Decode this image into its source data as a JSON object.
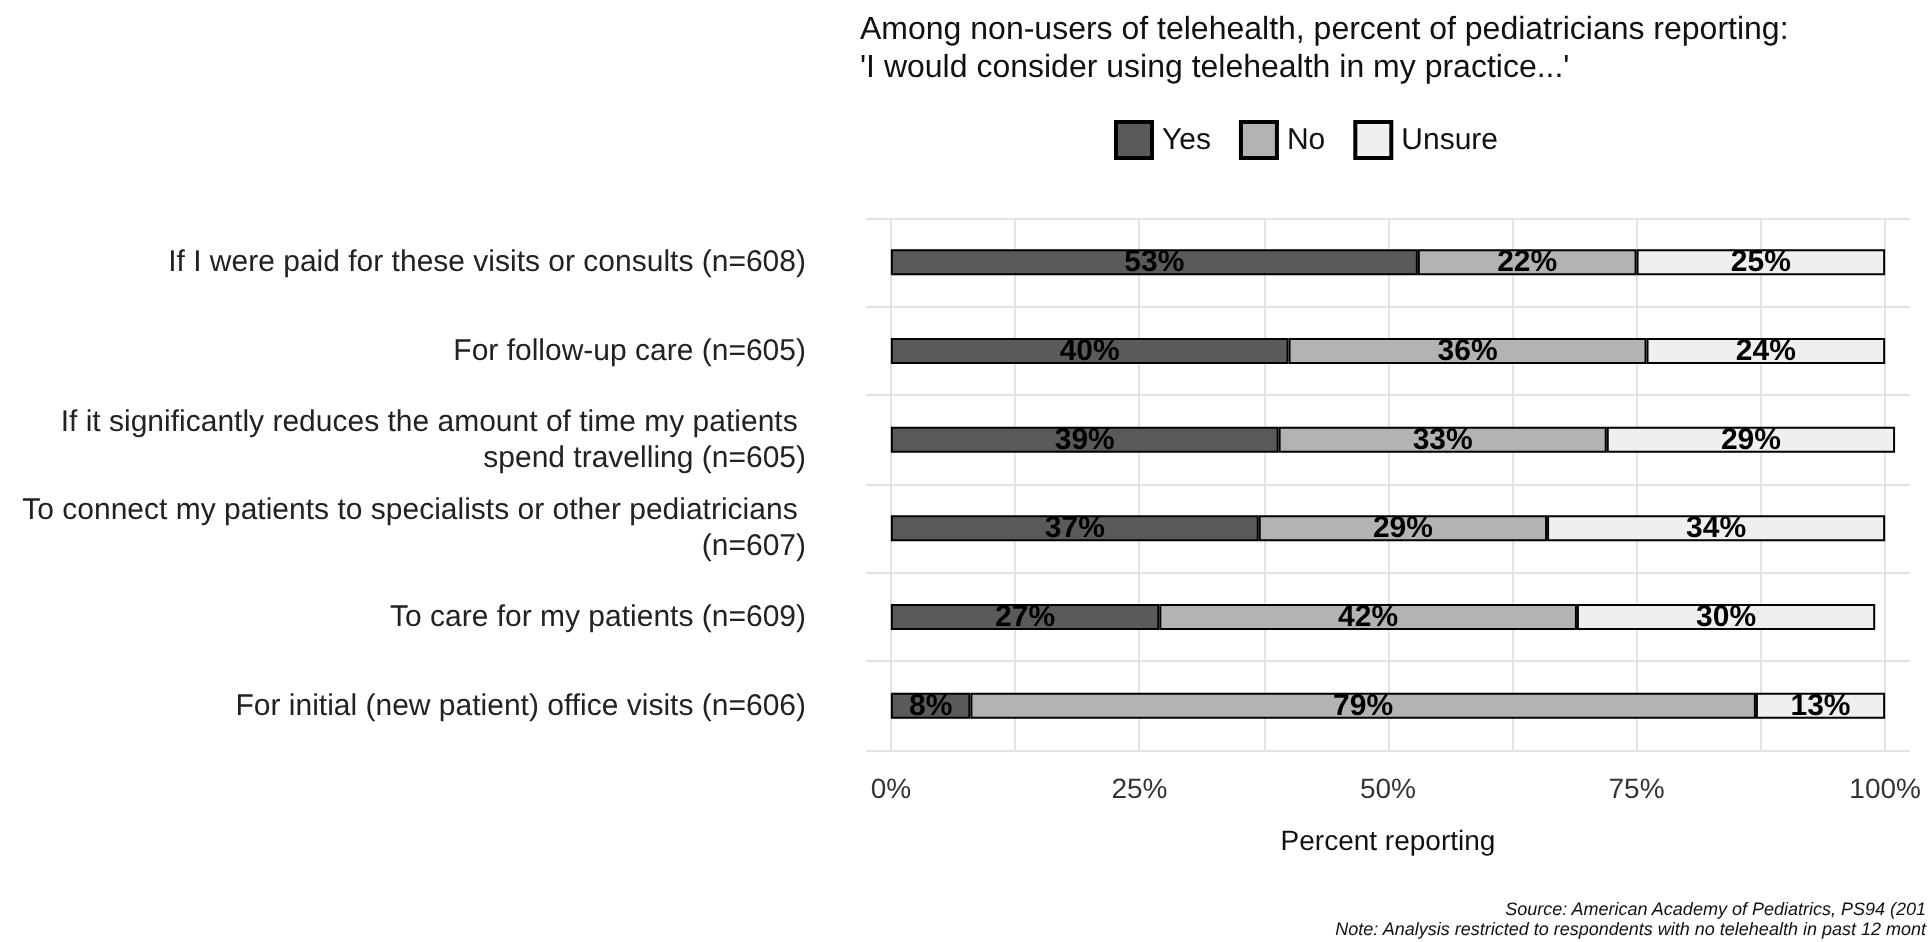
{
  "chart_data": {
    "type": "bar",
    "orientation": "horizontal",
    "stacked": true,
    "title": "Among non-users of telehealth, percent of pediatricians reporting:",
    "subtitle": "'I would consider using telehealth in my practice...'",
    "xlabel": "Percent reporting",
    "categories": [
      "If I were paid for these visits or consults (n=608)",
      "For follow-up care (n=605)",
      "If it significantly reduces the amount of time my patients spend travelling (n=605)",
      "To connect my patients to specialists or other pediatricians (n=607)",
      "To care for my patients (n=609)",
      "For initial (new patient) office visits (n=606)"
    ],
    "series": [
      {
        "name": "Yes",
        "color": "#5a5a5a",
        "values": [
          53,
          40,
          39,
          37,
          27,
          8
        ],
        "value_labels": [
          "53%",
          "40%",
          "39%",
          "37%",
          "27%",
          "8%"
        ]
      },
      {
        "name": "No",
        "color": "#b3b3b3",
        "values": [
          22,
          36,
          33,
          29,
          42,
          79
        ],
        "value_labels": [
          "22%",
          "36%",
          "33%",
          "29%",
          "42%",
          "79%"
        ]
      },
      {
        "name": "Unsure",
        "color": "#efefef",
        "values": [
          25,
          24,
          29,
          34,
          30,
          13
        ],
        "value_labels": [
          "25%",
          "24%",
          "29%",
          "34%",
          "30%",
          "13%"
        ]
      }
    ],
    "xlim": [
      -2.5,
      102.5
    ],
    "xticks": [
      {
        "value": 0,
        "label": "0%"
      },
      {
        "value": 12.5,
        "label": null
      },
      {
        "value": 25,
        "label": "25%"
      },
      {
        "value": 37.5,
        "label": null
      },
      {
        "value": 50,
        "label": "50%"
      },
      {
        "value": 62.5,
        "label": null
      },
      {
        "value": 75,
        "label": "75%"
      },
      {
        "value": 87.5,
        "label": null
      },
      {
        "value": 100,
        "label": "100%"
      }
    ],
    "grid": true,
    "legend": "top",
    "annotations": [
      "Source: American Academy of Pediatrics, PS94 (201",
      "Note: Analysis restricted to respondents with no telehealth in past 12 mont"
    ]
  }
}
